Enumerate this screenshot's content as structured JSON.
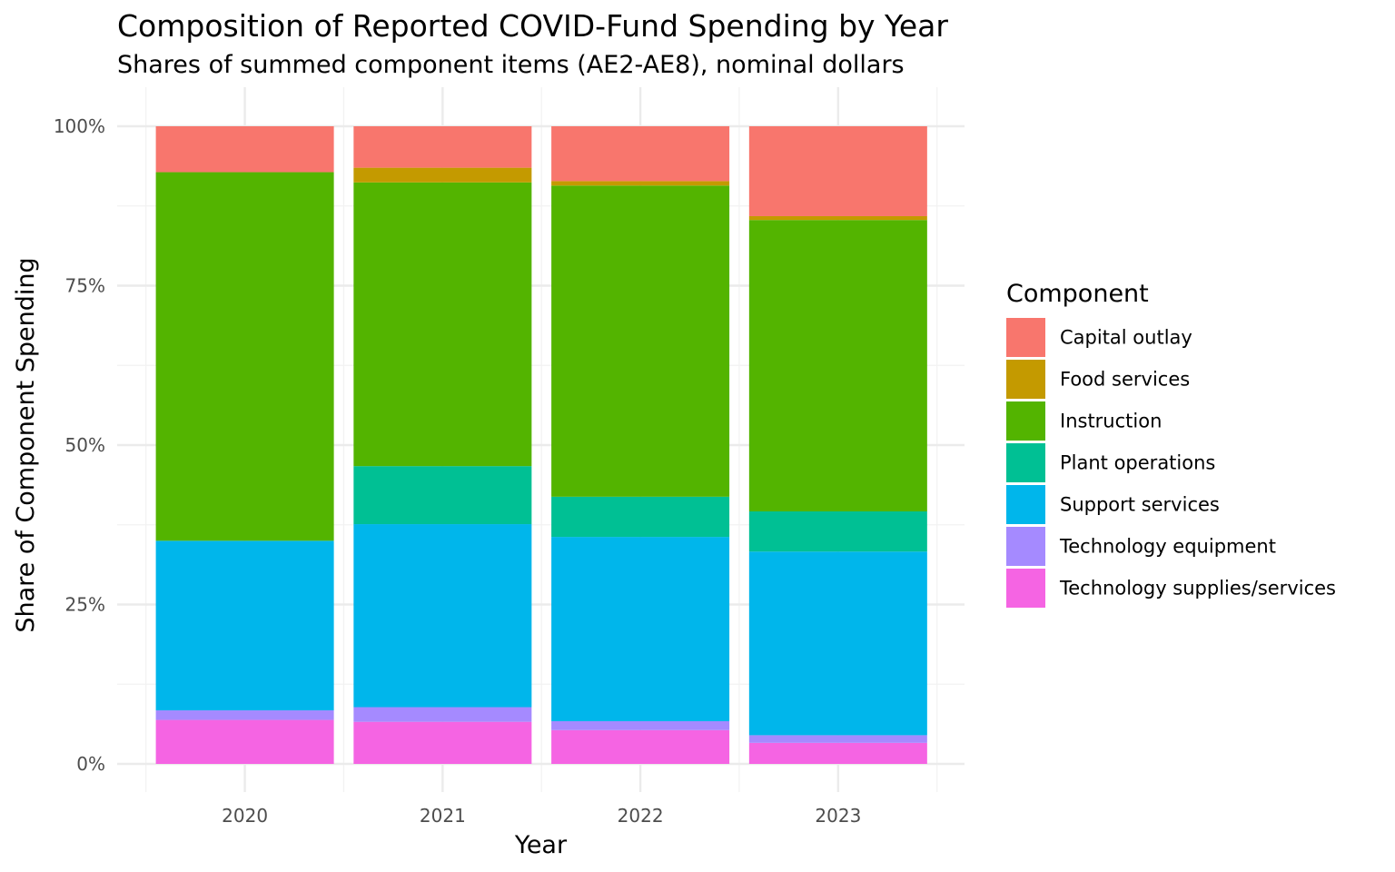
{
  "chart_data": {
    "type": "bar",
    "stacked": true,
    "title": "Composition of Reported COVID-Fund Spending by Year",
    "subtitle": "Shares of summed component items (AE2-AE8), nominal dollars",
    "xlabel": "Year",
    "ylabel": "Share of Component Spending",
    "ylim": [
      0,
      1
    ],
    "yticks": [
      "0%",
      "25%",
      "50%",
      "75%",
      "100%"
    ],
    "grid": true,
    "legend_title": "Component",
    "legend_position": "right",
    "categories": [
      "2020",
      "2021",
      "2022",
      "2023"
    ],
    "series": [
      {
        "name": "Technology supplies/services",
        "color": "#F564E3",
        "values": [
          0.069,
          0.066,
          0.053,
          0.033
        ]
      },
      {
        "name": "Technology equipment",
        "color": "#A58AFF",
        "values": [
          0.015,
          0.023,
          0.014,
          0.012
        ]
      },
      {
        "name": "Support services",
        "color": "#00B6EB",
        "values": [
          0.266,
          0.287,
          0.289,
          0.288
        ]
      },
      {
        "name": "Plant operations",
        "color": "#00C094",
        "values": [
          0.0,
          0.091,
          0.063,
          0.063
        ]
      },
      {
        "name": "Instruction",
        "color": "#53B400",
        "values": [
          0.578,
          0.445,
          0.488,
          0.457
        ]
      },
      {
        "name": "Food services",
        "color": "#C49A00",
        "values": [
          0.0,
          0.023,
          0.007,
          0.006
        ]
      },
      {
        "name": "Capital outlay",
        "color": "#F8766D",
        "values": [
          0.072,
          0.065,
          0.086,
          0.141
        ]
      }
    ],
    "legend_order": [
      "Capital outlay",
      "Food services",
      "Instruction",
      "Plant operations",
      "Support services",
      "Technology equipment",
      "Technology supplies/services"
    ]
  }
}
